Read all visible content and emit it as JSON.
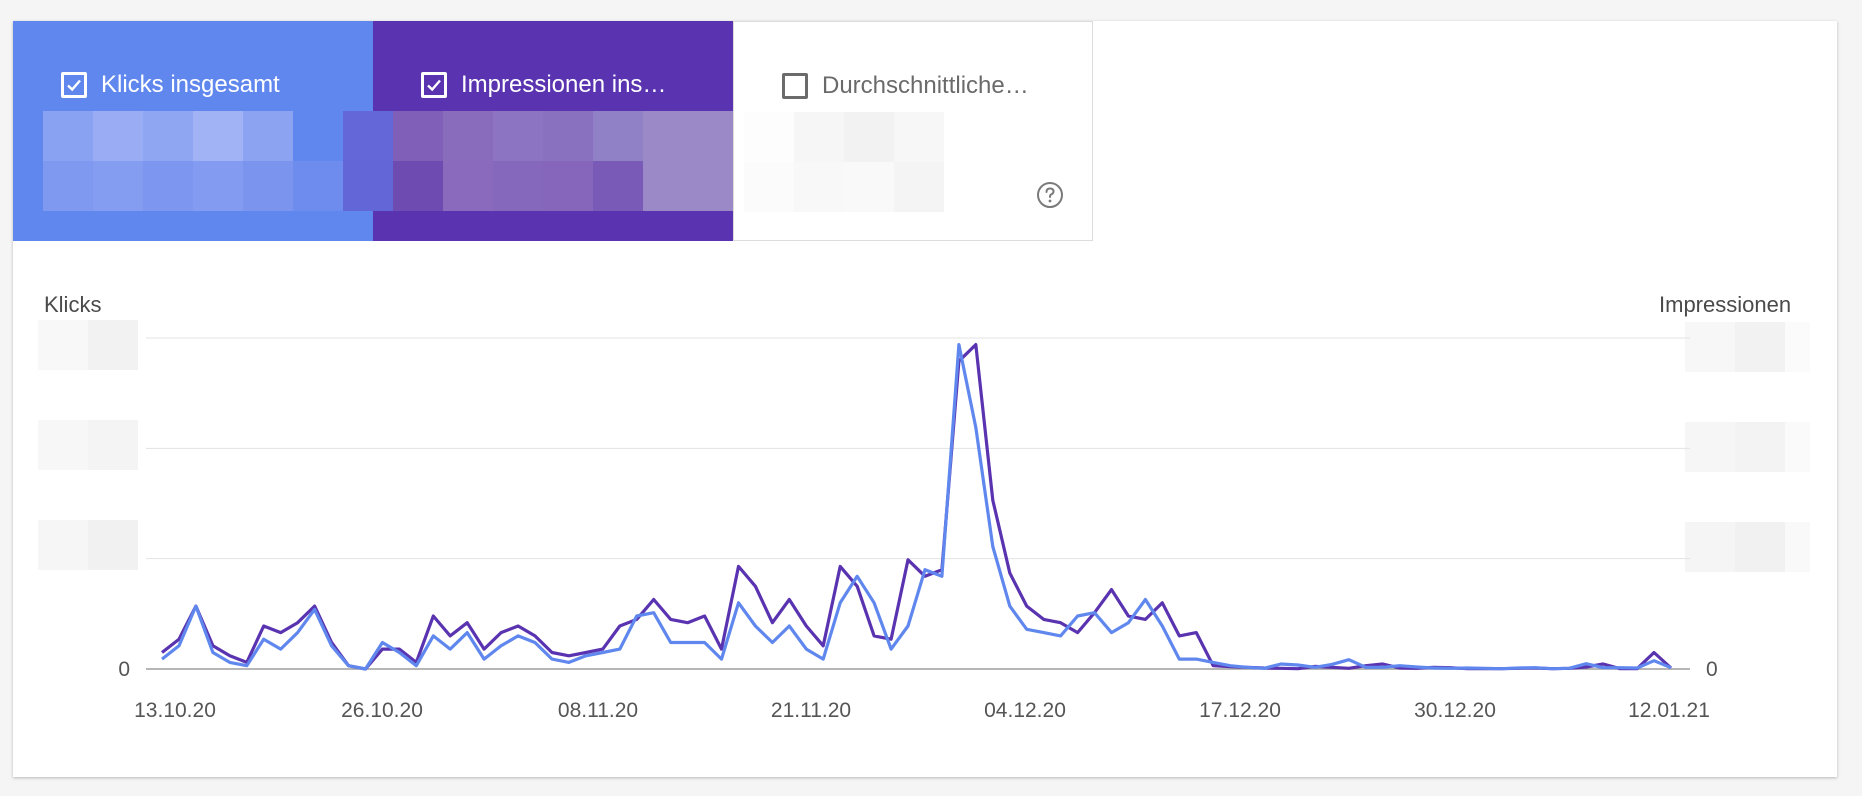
{
  "metrics": [
    {
      "label": "Klicks insgesamt",
      "checked": true,
      "color": "#5f87ee"
    },
    {
      "label": "Impressionen ins…",
      "checked": true,
      "color": "#5a33b0"
    },
    {
      "label": "Durchschnittliche…",
      "checked": false,
      "color": "#ffffff"
    }
  ],
  "icons": {
    "checkbox_checked": "check-icon",
    "help": "question-circle-icon"
  },
  "chart_data": {
    "type": "line",
    "title": "",
    "ylabel_left": "Klicks",
    "ylabel_right": "Impressionen",
    "x_ticks": [
      "13.10.20",
      "26.10.20",
      "08.11.20",
      "21.11.20",
      "04.12.20",
      "17.12.20",
      "30.12.20",
      "12.01.21"
    ],
    "y_zero_label_left": "0",
    "y_zero_label_right": "0",
    "y_scale": "relative (tick labels obscured)",
    "grid": true,
    "series": [
      {
        "name": "Impressionen",
        "color": "#5a33b0",
        "values": [
          5,
          9,
          19,
          7,
          4,
          2,
          13,
          11,
          14,
          19,
          8,
          1,
          0,
          6,
          6,
          2,
          16,
          10,
          14,
          6,
          11,
          13,
          10,
          5,
          4,
          5,
          6,
          13,
          15,
          21,
          15,
          14,
          16,
          6,
          31,
          25,
          14,
          21,
          13,
          7,
          31,
          25,
          10,
          9,
          33,
          28,
          30,
          93,
          98,
          51,
          29,
          19,
          15,
          14,
          11,
          17,
          24,
          16,
          15,
          20,
          10,
          11,
          1,
          0.7,
          0.5,
          0.3,
          0.2,
          0.1,
          0.8,
          0.5,
          0.2,
          1,
          1.5,
          0.3,
          0.2,
          0.5,
          0.4,
          0.1,
          0.1,
          0.1,
          0.2,
          0.3,
          0.1,
          0.2,
          0.6,
          1.5,
          0.1,
          0.1,
          5,
          0.3
        ],
        "note": "values shown as percent of left-axis plot height (gridlines at 33.3, 66.7, 100)"
      },
      {
        "name": "Klicks",
        "color": "#5f87ee",
        "values": [
          3,
          7,
          19,
          5,
          2,
          1,
          9,
          6,
          11,
          18,
          7,
          1,
          0,
          8,
          5,
          1,
          10,
          6,
          11,
          3,
          7,
          10,
          8,
          3,
          2,
          4,
          5,
          6,
          16,
          17,
          8,
          8,
          8,
          3,
          20,
          13,
          8,
          13,
          6,
          3,
          20,
          28,
          20,
          6,
          13,
          30,
          28,
          98,
          73,
          37,
          19,
          12,
          11,
          10,
          16,
          17,
          11,
          14,
          21,
          13,
          3,
          3,
          2,
          1,
          0.5,
          0.2,
          1.5,
          1.2,
          0.5,
          1.4,
          2.8,
          0.5,
          0.5,
          1,
          0.6,
          0.3,
          0.2,
          0.3,
          0.2,
          0.1,
          0.3,
          0.4,
          0.1,
          0.2,
          1.6,
          0.4,
          0.4,
          0.3,
          2.5,
          0.4
        ]
      }
    ]
  }
}
